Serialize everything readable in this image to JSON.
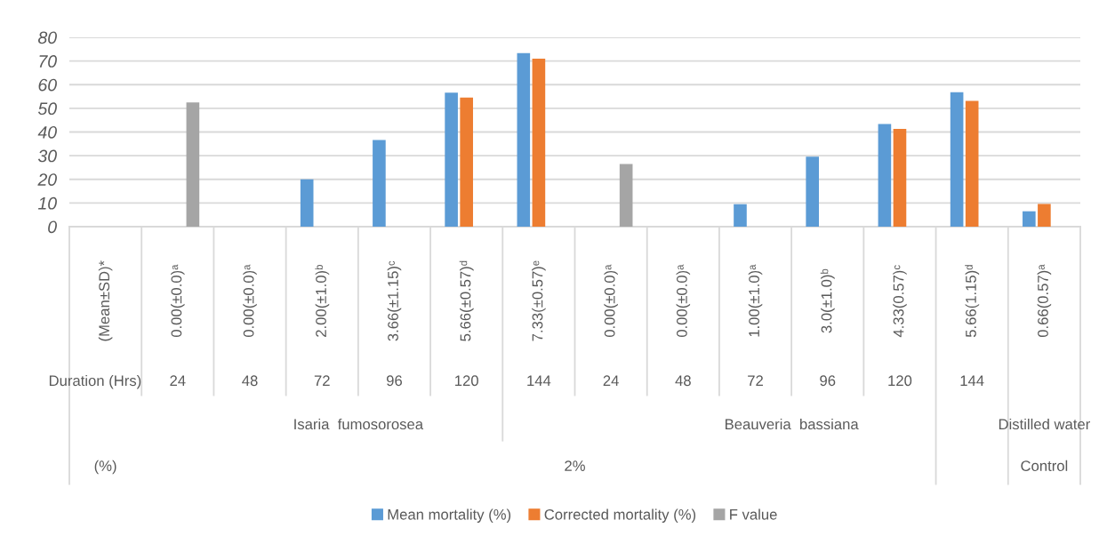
{
  "chart_data": {
    "type": "bar",
    "categories": [
      "(Mean±SD)*",
      "0.00(±0.0)ᵃ",
      "0.00(±0.0)ᵃ",
      "2.00(±1.0)ᵇ",
      "3.66(±1.15)ᶜ",
      "5.66(±0.57)ᵈ",
      "7.33(±0.57)ᵉ",
      "0.00(±0.0)ᵃ",
      "0.00(±0.0)ᵃ",
      "1.00(±1.0)ᵃ",
      "3.0(±1.0)ᵇ",
      "4.33(0.57)ᶜ",
      "5.66(1.15)ᵈ",
      "0.66(0.57)ᵃ"
    ],
    "series": [
      {
        "name": "Mean mortality (%)",
        "color": "#5b9bd5",
        "values": [
          null,
          0,
          0,
          20,
          36.6,
          56.6,
          73.3,
          0,
          0,
          9.5,
          29.6,
          43.4,
          56.8,
          6.5
        ]
      },
      {
        "name": "Corrected mortality (%)",
        "color": "#ed7d31",
        "values": [
          null,
          null,
          null,
          null,
          null,
          54.6,
          71.0,
          null,
          null,
          null,
          null,
          41.3,
          53.1,
          9.6
        ]
      },
      {
        "name": "F value",
        "color": "#a5a5a5",
        "values": [
          null,
          52.5,
          null,
          null,
          null,
          null,
          null,
          26.5,
          null,
          null,
          null,
          null,
          null,
          null
        ]
      }
    ],
    "ylim": [
      0,
      80
    ],
    "yticks": [
      0,
      10,
      20,
      30,
      40,
      50,
      60,
      70,
      80
    ],
    "grid": "y",
    "legend": "bottom",
    "annotations": [
      "Duration (Hrs)",
      "24",
      "48",
      "72",
      "96",
      "120",
      "144",
      "24",
      "48",
      "72",
      "96",
      "120",
      "144",
      "Isaria  fumosorosea",
      "Beauveria  bassiana",
      "Distilled water",
      "(%)",
      "2%",
      "Control"
    ]
  }
}
